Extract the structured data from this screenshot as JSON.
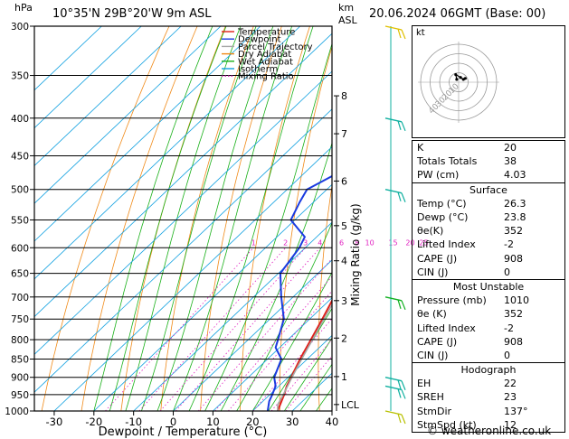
{
  "header": {
    "hpa_unit": "hPa",
    "location": "10°35'N  29B°20'W  9m  ASL",
    "km_unit": "km",
    "asl_unit": "ASL",
    "datetime": "20.06.2024  06GMT  (Base: 00)"
  },
  "chart_data": {
    "type": "skew-t",
    "xlabel": "Dewpoint / Temperature (°C)",
    "ylabel_right": "Mixing Ratio (g/kg)",
    "x_ticks": [
      -30,
      -20,
      -10,
      0,
      10,
      20,
      30,
      40
    ],
    "x_range": [
      -35,
      40
    ],
    "pressure_levels": [
      300,
      350,
      400,
      450,
      500,
      550,
      600,
      650,
      700,
      750,
      800,
      850,
      900,
      950,
      1000
    ],
    "pressure_range": [
      300,
      1000
    ],
    "km_ticks": [
      {
        "label": "8",
        "p": 373
      },
      {
        "label": "7",
        "p": 420
      },
      {
        "label": "6",
        "p": 487
      },
      {
        "label": "5",
        "p": 560
      },
      {
        "label": "4",
        "p": 625
      },
      {
        "label": "3",
        "p": 708
      },
      {
        "label": "2",
        "p": 796
      },
      {
        "label": "1",
        "p": 898
      },
      {
        "label": "LCL",
        "p": 980
      }
    ],
    "mixing_ratio_labels": [
      "1",
      "2",
      "3",
      "4",
      "6",
      "8",
      "10",
      "15",
      "20",
      "25"
    ],
    "mixing_ratio_values": [
      1,
      2,
      3,
      4,
      6,
      8,
      10,
      15,
      20,
      25
    ],
    "legend": [
      "Temperature",
      "Dewpoint",
      "Parcel Trajectory",
      "Dry Adiabat",
      "Wet Adiabat",
      "Isotherm",
      "Mixing Ratio"
    ],
    "series": [
      {
        "name": "Temperature",
        "color": "#e0201a",
        "points": [
          [
            1000,
            26.3
          ],
          [
            950,
            23.6
          ],
          [
            925,
            22.0
          ],
          [
            900,
            20.8
          ],
          [
            850,
            18.2
          ],
          [
            800,
            15.8
          ],
          [
            750,
            13.2
          ],
          [
            700,
            10.3
          ],
          [
            650,
            6.8
          ],
          [
            600,
            3.2
          ],
          [
            550,
            -0.6
          ],
          [
            500,
            -4.6
          ],
          [
            450,
            -9.5
          ],
          [
            400,
            -15.5
          ],
          [
            370,
            -19.0
          ]
        ]
      },
      {
        "name": "Dewpoint",
        "color": "#1a3be0",
        "points": [
          [
            1000,
            23.8
          ],
          [
            970,
            21.6
          ],
          [
            950,
            20.6
          ],
          [
            925,
            19.2
          ],
          [
            900,
            16.5
          ],
          [
            850,
            13.5
          ],
          [
            820,
            9.0
          ],
          [
            800,
            7.5
          ],
          [
            750,
            3.5
          ],
          [
            700,
            -3.0
          ],
          [
            650,
            -9.5
          ],
          [
            600,
            -11.5
          ],
          [
            580,
            -13.0
          ],
          [
            550,
            -21.0
          ],
          [
            520,
            -23.5
          ],
          [
            500,
            -25.0
          ],
          [
            450,
            -18.0
          ],
          [
            400,
            -13.0
          ],
          [
            350,
            -19.0
          ],
          [
            300,
            -25.5
          ]
        ]
      },
      {
        "name": "Parcel Trajectory",
        "color": "#a8a8a8",
        "points": [
          [
            1000,
            26.3
          ],
          [
            980,
            24.6
          ],
          [
            950,
            23.4
          ],
          [
            900,
            21.0
          ],
          [
            850,
            18.6
          ],
          [
            800,
            16.2
          ],
          [
            750,
            13.6
          ],
          [
            700,
            10.9
          ],
          [
            650,
            7.9
          ],
          [
            600,
            4.6
          ],
          [
            550,
            0.8
          ],
          [
            500,
            -3.2
          ],
          [
            450,
            -8.1
          ],
          [
            400,
            -13.8
          ]
        ]
      }
    ],
    "wind_barbs": [
      {
        "p": 300,
        "color": "#e0c000"
      },
      {
        "p": 400,
        "color": "#10b0a0"
      },
      {
        "p": 500,
        "color": "#10b0a0"
      },
      {
        "p": 700,
        "color": "#10b020"
      },
      {
        "p": 900,
        "color": "#10b0a0"
      },
      {
        "p": 925,
        "color": "#10b0a0"
      },
      {
        "p": 1000,
        "color": "#b8c000"
      }
    ],
    "hodograph": {
      "unit": "kt",
      "ring_labels": [
        "40",
        "30",
        "20",
        "10"
      ],
      "points": [
        [
          -2,
          3
        ],
        [
          -3,
          8
        ],
        [
          2,
          5
        ],
        [
          5,
          3
        ],
        [
          7,
          4
        ]
      ]
    }
  },
  "info": {
    "k_label": "K",
    "k_value": "20",
    "tt_label": "Totals Totals",
    "tt_value": "38",
    "pw_label": "PW (cm)",
    "pw_value": "4.03",
    "surface": {
      "title": "Surface",
      "rows": [
        {
          "label": "Temp (°C)",
          "value": "26.3"
        },
        {
          "label": "Dewp (°C)",
          "value": "23.8"
        },
        {
          "label": "θe(K)",
          "value": "352"
        },
        {
          "label": "Lifted Index",
          "value": "-2"
        },
        {
          "label": "CAPE (J)",
          "value": "908"
        },
        {
          "label": "CIN (J)",
          "value": "0"
        }
      ]
    },
    "most_unstable": {
      "title": "Most Unstable",
      "rows": [
        {
          "label": "Pressure (mb)",
          "value": "1010"
        },
        {
          "label": "θe (K)",
          "value": "352"
        },
        {
          "label": "Lifted Index",
          "value": "-2"
        },
        {
          "label": "CAPE (J)",
          "value": "908"
        },
        {
          "label": "CIN (J)",
          "value": "0"
        }
      ]
    },
    "hodograph": {
      "title": "Hodograph",
      "rows": [
        {
          "label": "EH",
          "value": "22"
        },
        {
          "label": "SREH",
          "value": "23"
        },
        {
          "label": "StmDir",
          "value": "137°"
        },
        {
          "label": "StmSpd (kt)",
          "value": "12"
        }
      ]
    }
  },
  "footer": {
    "copyright": "© weatheronline.co.uk"
  }
}
